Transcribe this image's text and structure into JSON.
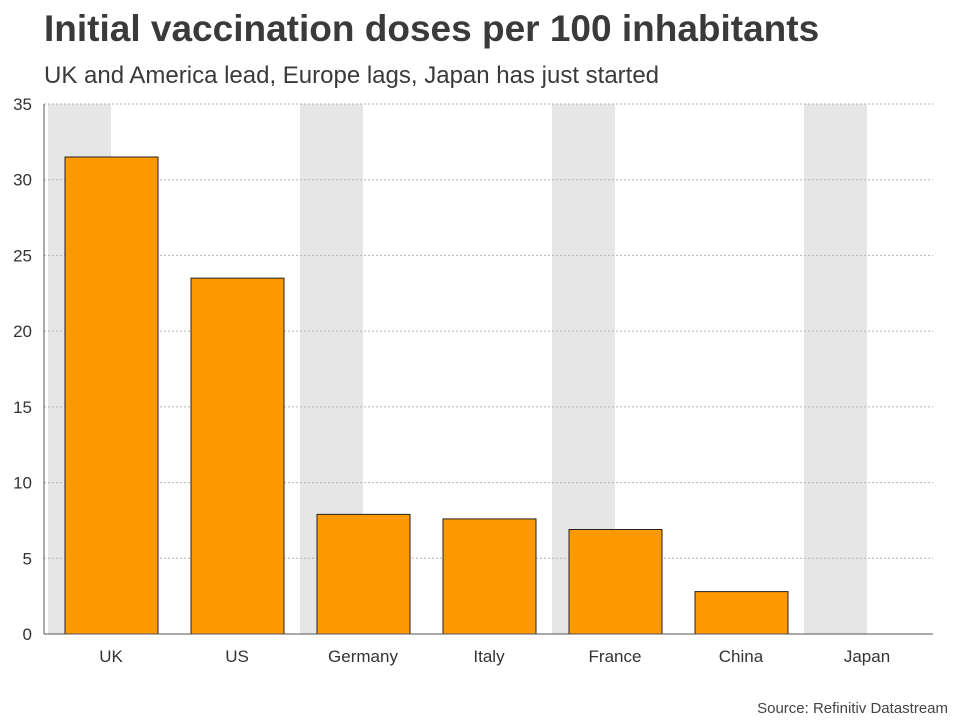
{
  "title": "Initial vaccination doses per 100 inhabitants",
  "subtitle": "UK and America lead, Europe lags, Japan has just started",
  "source": "Source: Refinitiv Datastream",
  "colors": {
    "bar": "#ff9900",
    "bar_outline": "#222222",
    "band": "#e6e6e6",
    "grid": "#b5b5b5",
    "axis": "#555555"
  },
  "chart_data": {
    "type": "bar",
    "title": "Initial vaccination doses per 100 inhabitants",
    "xlabel": "",
    "ylabel": "",
    "categories": [
      "UK",
      "US",
      "Germany",
      "Italy",
      "France",
      "China",
      "Japan"
    ],
    "values": [
      31.5,
      23.5,
      7.9,
      7.6,
      6.9,
      2.8,
      0.0
    ],
    "ylim": [
      0,
      35
    ],
    "yticks": [
      0,
      5,
      10,
      15,
      20,
      25,
      30,
      35
    ],
    "grid": true
  }
}
